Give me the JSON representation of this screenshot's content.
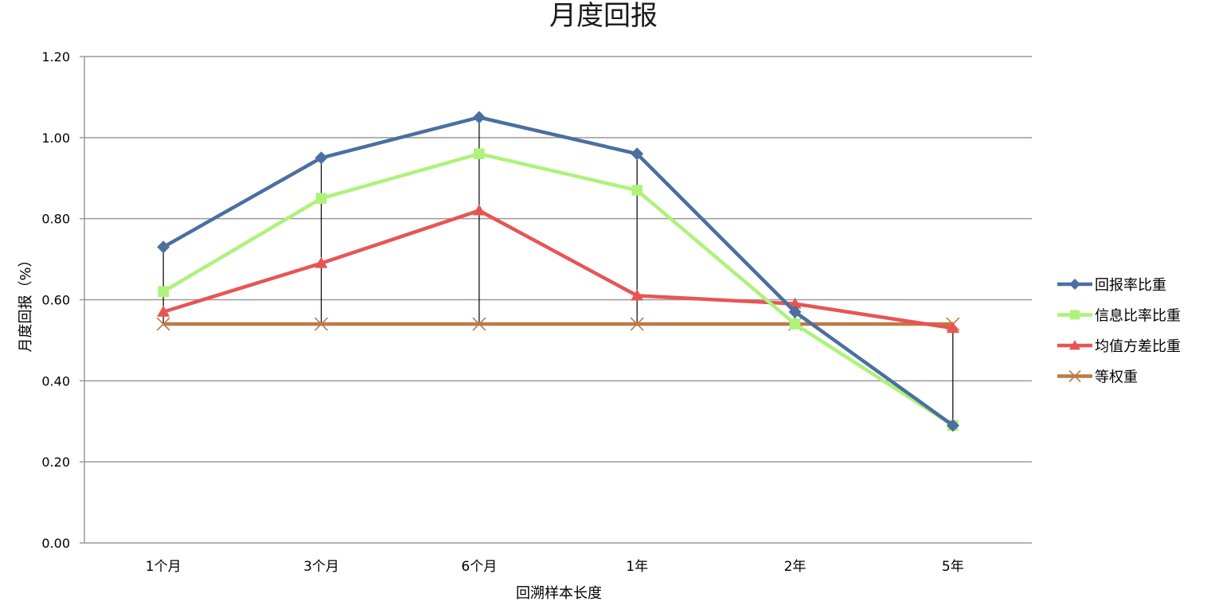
{
  "chart_data": {
    "type": "line",
    "title": "月度回报",
    "xlabel": "回溯样本长度",
    "ylabel": "月度回报（%）",
    "ylim": [
      0,
      1.2
    ],
    "yticks": [
      "0.00",
      "0.20",
      "0.40",
      "0.60",
      "0.80",
      "1.00",
      "1.20"
    ],
    "categories": [
      "1个月",
      "3个月",
      "6个月",
      "1年",
      "2年",
      "5年"
    ],
    "grid": true,
    "legend_position": "right",
    "drop_lines": true,
    "series": [
      {
        "name": "回报率比重",
        "color": "#4A6FA0",
        "marker": "diamond",
        "values": [
          0.73,
          0.95,
          1.05,
          0.96,
          0.57,
          0.29
        ]
      },
      {
        "name": "信息比率比重",
        "color": "#AEF27A",
        "marker": "square",
        "values": [
          0.62,
          0.85,
          0.96,
          0.87,
          0.54,
          0.29
        ]
      },
      {
        "name": "均值方差比重",
        "color": "#E85454",
        "marker": "triangle",
        "values": [
          0.57,
          0.69,
          0.82,
          0.61,
          0.59,
          0.53
        ]
      },
      {
        "name": "等权重",
        "color": "#BD7A45",
        "marker": "x",
        "values": [
          0.54,
          0.54,
          0.54,
          0.54,
          0.54,
          0.54
        ]
      }
    ]
  }
}
